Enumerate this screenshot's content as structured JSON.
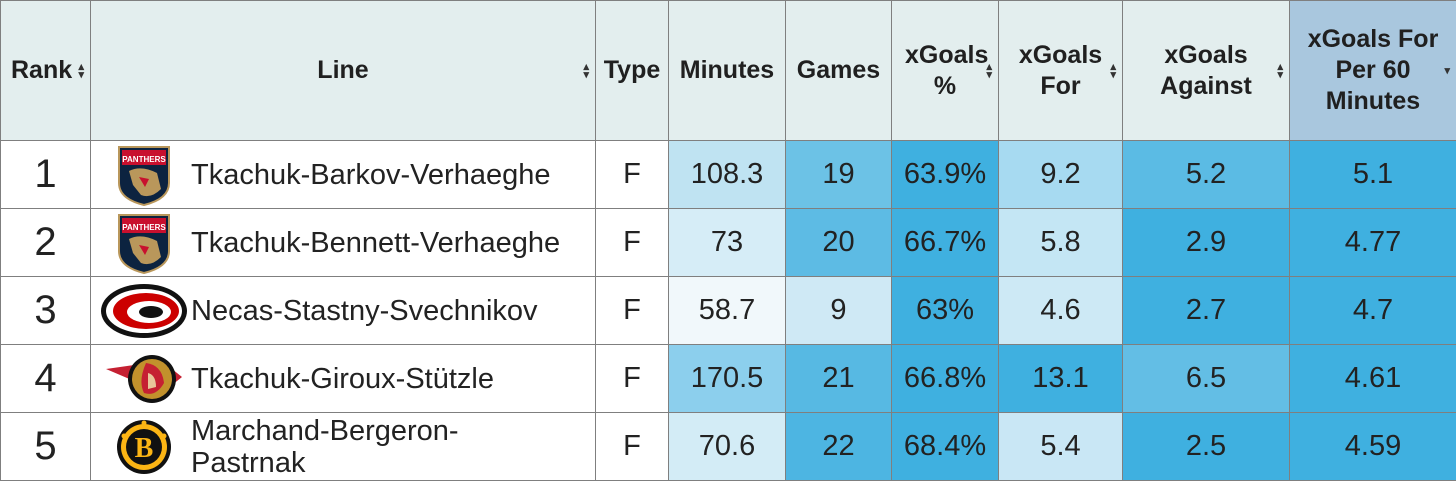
{
  "table": {
    "columns": [
      {
        "label": "Rank",
        "sortable": true
      },
      {
        "label": "Line",
        "sortable": true
      },
      {
        "label": "Type",
        "sortable": true
      },
      {
        "label": "Minutes",
        "sortable": true
      },
      {
        "label": "Games",
        "sortable": true
      },
      {
        "label": "xGoals %",
        "sortable": true
      },
      {
        "label": "xGoals For",
        "sortable": true
      },
      {
        "label": "xGoals Against",
        "sortable": true
      },
      {
        "label": "xGoals For Per 60 Minutes",
        "sortable": true,
        "sorted": "desc"
      }
    ],
    "rows": [
      {
        "rank": "1",
        "team_logo": "panthers-logo-icon",
        "line": "Tkachuk-Barkov-Verhaeghe",
        "type": "F",
        "minutes": "108.3",
        "games": "19",
        "xg_pct": "63.9%",
        "xgf": "9.2",
        "xga": "5.2",
        "xgf60": "5.1"
      },
      {
        "rank": "2",
        "team_logo": "panthers-logo-icon",
        "line": "Tkachuk-Bennett-Verhaeghe",
        "type": "F",
        "minutes": "73",
        "games": "20",
        "xg_pct": "66.7%",
        "xgf": "5.8",
        "xga": "2.9",
        "xgf60": "4.77"
      },
      {
        "rank": "3",
        "team_logo": "hurricanes-logo-icon",
        "line": "Necas-Stastny-Svechnikov",
        "type": "F",
        "minutes": "58.7",
        "games": "9",
        "xg_pct": "63%",
        "xgf": "4.6",
        "xga": "2.7",
        "xgf60": "4.7"
      },
      {
        "rank": "4",
        "team_logo": "senators-logo-icon",
        "line": "Tkachuk-Giroux-Stützle",
        "type": "F",
        "minutes": "170.5",
        "games": "21",
        "xg_pct": "66.8%",
        "xgf": "13.1",
        "xga": "6.5",
        "xgf60": "4.61"
      },
      {
        "rank": "5",
        "team_logo": "bruins-logo-icon",
        "line": "Marchand-Bergeron-Pastrnak",
        "type": "F",
        "minutes": "70.6",
        "games": "22",
        "xg_pct": "68.4%",
        "xgf": "5.4",
        "xga": "2.5",
        "xgf60": "4.59"
      }
    ],
    "cell_colors": [
      {
        "minutes": "#bfe3f2",
        "games": "#6cc2e6",
        "xg_pct": "#3fb0e0",
        "xgf": "#a7daf1",
        "xga": "#5bbbe4",
        "xgf60": "#3fb0e0"
      },
      {
        "minutes": "#d6edf7",
        "games": "#5dbbe4",
        "xg_pct": "#3fb0e0",
        "xgf": "#c4e6f4",
        "xga": "#3fb0e0",
        "xgf60": "#3fb0e0"
      },
      {
        "minutes": "#f1f8fb",
        "games": "#cfe9f5",
        "xg_pct": "#3fb0e0",
        "xgf": "#cde9f5",
        "xga": "#3fb0e0",
        "xgf60": "#3fb0e0"
      },
      {
        "minutes": "#8ccfed",
        "games": "#57b9e3",
        "xg_pct": "#3fb0e0",
        "xgf": "#3fb0e0",
        "xga": "#63bee5",
        "xgf60": "#3fb0e0"
      },
      {
        "minutes": "#d3ecf6",
        "games": "#4db5e2",
        "xg_pct": "#3fb0e0",
        "xgf": "#c9e7f5",
        "xga": "#3fb0e0",
        "xgf60": "#3fb0e0"
      }
    ]
  }
}
